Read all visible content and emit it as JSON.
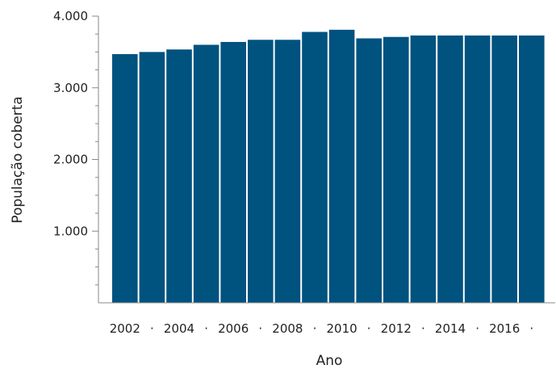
{
  "chart_data": {
    "type": "bar",
    "title": "",
    "xlabel": "Ano",
    "ylabel": "População coberta",
    "categories": [
      "2002",
      "2003",
      "2004",
      "2005",
      "2006",
      "2007",
      "2008",
      "2009",
      "2010",
      "2011",
      "2012",
      "2013",
      "2014",
      "2015",
      "2016",
      "2017"
    ],
    "values": [
      3470,
      3500,
      3535,
      3600,
      3640,
      3670,
      3670,
      3780,
      3810,
      3690,
      3710,
      3730,
      3730,
      3730,
      3730,
      3730
    ],
    "ylim": [
      0,
      4000
    ],
    "yticks": [
      1000,
      2000,
      3000,
      4000
    ],
    "ytick_labels": [
      "1.000",
      "2.000",
      "3.000",
      "4.000"
    ],
    "xtick_labels": [
      "2002",
      "·",
      "2004",
      "·",
      "2006",
      "·",
      "2008",
      "·",
      "2010",
      "·",
      "2012",
      "·",
      "2014",
      "·",
      "2016",
      "·"
    ],
    "bar_color": "#00527f",
    "grid": false,
    "legend": "none"
  }
}
